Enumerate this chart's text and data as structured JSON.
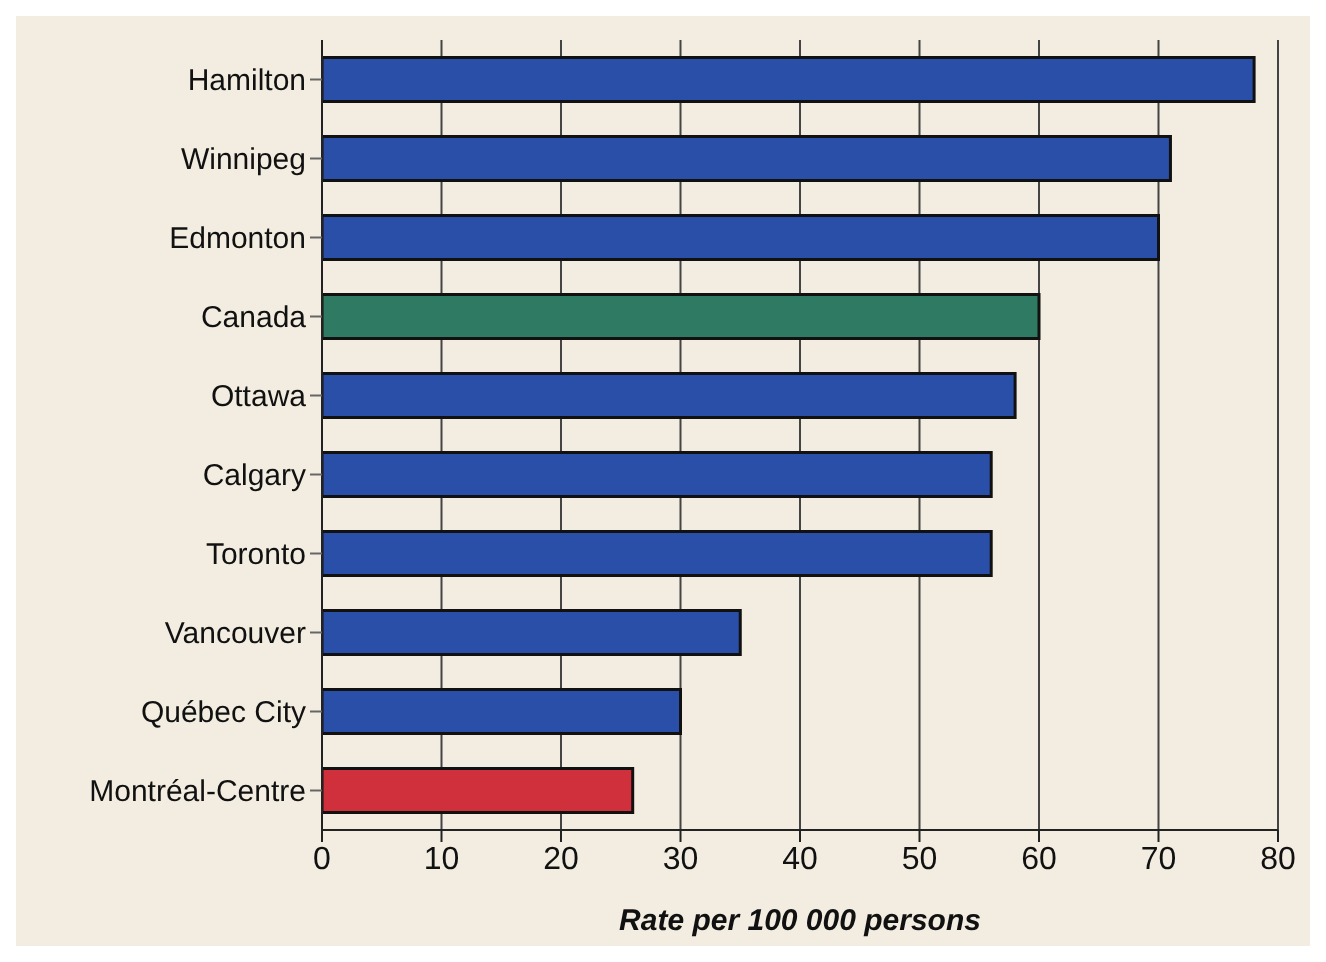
{
  "chart_data": {
    "type": "bar",
    "orientation": "horizontal",
    "xlabel": "Rate per 100 000 persons",
    "categories": [
      "Hamilton",
      "Winnipeg",
      "Edmonton",
      "Canada",
      "Ottawa",
      "Calgary",
      "Toronto",
      "Vancouver",
      "Québec City",
      "Montréal-Centre"
    ],
    "values": [
      78,
      71,
      70,
      60,
      58,
      56,
      56,
      35,
      30,
      26
    ],
    "colors": [
      "#2a4fa8",
      "#2a4fa8",
      "#2a4fa8",
      "#2e7a63",
      "#2a4fa8",
      "#2a4fa8",
      "#2a4fa8",
      "#2a4fa8",
      "#2a4fa8",
      "#d0303c"
    ],
    "xlim": [
      0,
      80
    ],
    "xticks": [
      0,
      10,
      20,
      30,
      40,
      50,
      60,
      70,
      80
    ],
    "grid": "x"
  }
}
